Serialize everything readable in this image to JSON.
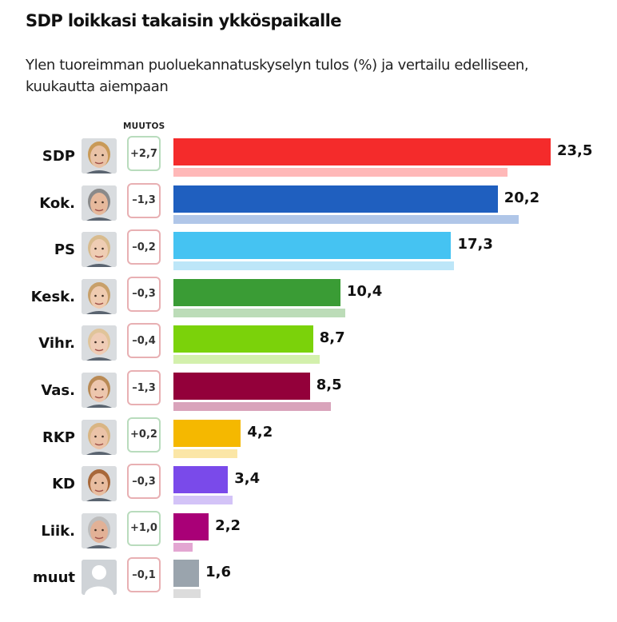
{
  "header": {
    "title": "SDP loikkasi takaisin ykköspaikalle",
    "subtitle": "Ylen tuoreimman puoluekannatuskyselyn tulos (%) ja vertailu edelliseen, kuukautta aiempaan",
    "change_column_label": "MUUTOS"
  },
  "chart_data": {
    "type": "bar",
    "orientation": "horizontal",
    "title": "SDP loikkasi takaisin ykköspaikalle",
    "subtitle": "Ylen tuoreimman puoluekannatuskyselyn tulos (%) ja vertailu edelliseen, kuukautta aiempaan",
    "xlabel": "",
    "ylabel": "",
    "xlim": [
      0,
      23.5
    ],
    "grid": false,
    "categories": [
      "SDP",
      "Kok.",
      "PS",
      "Kesk.",
      "Vihr.",
      "Vas.",
      "RKP",
      "KD",
      "Liik.",
      "muut"
    ],
    "series": [
      {
        "name": "current",
        "values": [
          23.5,
          20.2,
          17.3,
          10.4,
          8.7,
          8.5,
          4.2,
          3.4,
          2.2,
          1.6
        ],
        "labels": [
          "23,5",
          "20,2",
          "17,3",
          "10,4",
          "8,7",
          "8,5",
          "4,2",
          "3,4",
          "2,2",
          "1,6"
        ]
      },
      {
        "name": "previous",
        "values": [
          20.8,
          21.5,
          17.5,
          10.7,
          9.1,
          9.8,
          4.0,
          3.7,
          1.2,
          1.7
        ]
      }
    ],
    "changes": [
      "+2,7",
      "–1,3",
      "–0,2",
      "–0,3",
      "–0,4",
      "–1,3",
      "+0,2",
      "–0,3",
      "+1,0",
      "–0,1"
    ],
    "change_sign": [
      "pos",
      "neg",
      "neg",
      "neg",
      "neg",
      "neg",
      "pos",
      "neg",
      "pos",
      "neg"
    ],
    "colors": [
      "#f42b2b",
      "#1f5fbf",
      "#45c3f2",
      "#3a9c35",
      "#7bd20a",
      "#93003a",
      "#f5b800",
      "#7a4aea",
      "#a90077",
      "#9aa4ad"
    ],
    "prev_colors": [
      "#ffb8b8",
      "#b0c6e8",
      "#bde6f8",
      "#bcdcb8",
      "#d3f0ac",
      "#d9a4bb",
      "#fbe6a6",
      "#d3c3f7",
      "#e3a6d2",
      "#dcdcdc"
    ],
    "avatar_icons": [
      "person-photo-icon",
      "person-photo-icon",
      "person-photo-icon",
      "person-photo-icon",
      "person-photo-icon",
      "person-photo-icon",
      "person-photo-icon",
      "person-photo-icon",
      "person-photo-icon",
      "generic-person-icon"
    ]
  }
}
